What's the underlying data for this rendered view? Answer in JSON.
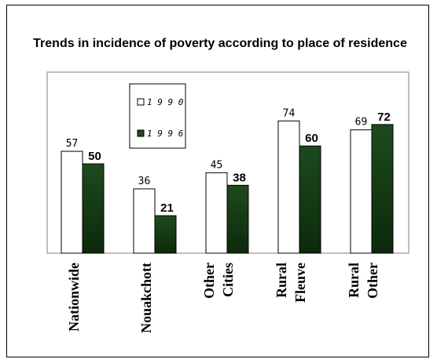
{
  "chart_data": {
    "type": "bar",
    "title": "Trends in incidence of poverty according to place of residence",
    "categories": [
      [
        "Nationwide"
      ],
      [
        "Nouakchott"
      ],
      [
        "Other",
        "Cities"
      ],
      [
        "Rural",
        "Fleuve"
      ],
      [
        "Rural",
        "Other"
      ]
    ],
    "series": [
      {
        "name": "1990",
        "values": [
          57,
          36,
          45,
          74,
          69
        ],
        "color": "#ffffff"
      },
      {
        "name": "1996",
        "values": [
          50,
          21,
          38,
          60,
          72
        ],
        "color": "#1e4a1e"
      }
    ],
    "ylim": [
      0,
      100
    ],
    "grid": false,
    "legend": "top-left"
  }
}
